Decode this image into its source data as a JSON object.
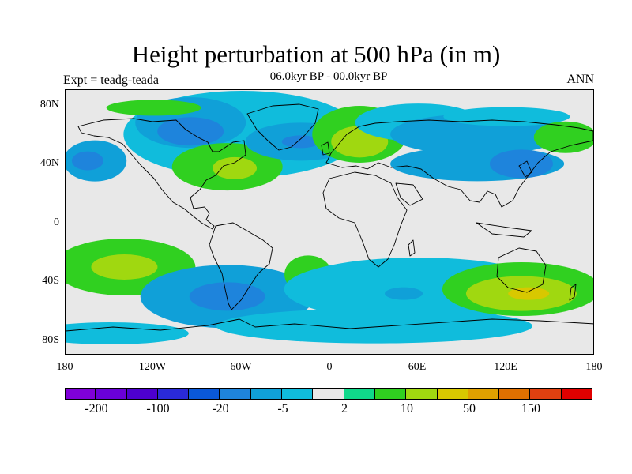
{
  "title": "Height perturbation at 500 hPa (in m)",
  "subtitle": "06.0kyr BP - 00.0kyr BP",
  "left_label": "Expt = teadg-teada",
  "right_label": "ANN",
  "y_ticks": [
    "80N",
    "40N",
    "0",
    "40S",
    "80S"
  ],
  "x_ticks": [
    "180",
    "120W",
    "60W",
    "0",
    "60E",
    "120E",
    "180"
  ],
  "colorbar": {
    "colors": [
      "#7f00d8",
      "#6a00d8",
      "#4d00d0",
      "#2a2ad8",
      "#0a58d8",
      "#1e84dc",
      "#10a0d8",
      "#10bcdc",
      "#e8e8e8",
      "#10d88a",
      "#30d020",
      "#a0d810",
      "#d8c800",
      "#e0a000",
      "#e07000",
      "#e04010",
      "#e00000"
    ],
    "labels": [
      "-200",
      "-100",
      "-20",
      "-5",
      "2",
      "10",
      "50",
      "150"
    ]
  },
  "chart_data": {
    "type": "heatmap",
    "map_type": "filled contour over world coastline map",
    "projection": "cylindrical equidistant",
    "xlim": [
      -180,
      180
    ],
    "ylim": [
      -90,
      90
    ],
    "x_ticks": [
      -180,
      -120,
      -60,
      0,
      60,
      120,
      180
    ],
    "y_ticks": [
      80,
      40,
      0,
      -40,
      -80
    ],
    "levels": [
      -250,
      -200,
      -150,
      -100,
      -50,
      -20,
      -10,
      -5,
      -2,
      2,
      5,
      10,
      20,
      50,
      100,
      150,
      200
    ],
    "regions": [
      {
        "lon": -60,
        "lat": 60,
        "value": -5
      },
      {
        "lon": -95,
        "lat": 68,
        "value": -10
      },
      {
        "lon": -95,
        "lat": 62,
        "value": -20
      },
      {
        "lon": -120,
        "lat": 78,
        "value": 5
      },
      {
        "lon": -160,
        "lat": 42,
        "value": -10
      },
      {
        "lon": -165,
        "lat": 42,
        "value": -20
      },
      {
        "lon": -70,
        "lat": 38,
        "value": 5
      },
      {
        "lon": -65,
        "lat": 37,
        "value": 15
      },
      {
        "lon": -20,
        "lat": 55,
        "value": -10
      },
      {
        "lon": -20,
        "lat": 55,
        "value": -20
      },
      {
        "lon": 20,
        "lat": 60,
        "value": 5
      },
      {
        "lon": 20,
        "lat": 55,
        "value": 15
      },
      {
        "lon": 60,
        "lat": 68,
        "value": -5
      },
      {
        "lon": 100,
        "lat": 60,
        "value": -10
      },
      {
        "lon": 120,
        "lat": 72,
        "value": -5
      },
      {
        "lon": 100,
        "lat": 40,
        "value": -10
      },
      {
        "lon": 130,
        "lat": 40,
        "value": -20
      },
      {
        "lon": 160,
        "lat": 58,
        "value": 5
      },
      {
        "lon": -140,
        "lat": -30,
        "value": 5
      },
      {
        "lon": -140,
        "lat": -30,
        "value": 15
      },
      {
        "lon": -70,
        "lat": -50,
        "value": -10
      },
      {
        "lon": -70,
        "lat": -50,
        "value": -20
      },
      {
        "lon": -15,
        "lat": -35,
        "value": 5
      },
      {
        "lon": 60,
        "lat": -45,
        "value": -5
      },
      {
        "lon": 50,
        "lat": -48,
        "value": -10
      },
      {
        "lon": 130,
        "lat": -45,
        "value": 5
      },
      {
        "lon": 130,
        "lat": -48,
        "value": 15
      },
      {
        "lon": 135,
        "lat": -48,
        "value": 30
      },
      {
        "lon": 30,
        "lat": -70,
        "value": -5
      },
      {
        "lon": -150,
        "lat": -75,
        "value": -5
      }
    ]
  }
}
